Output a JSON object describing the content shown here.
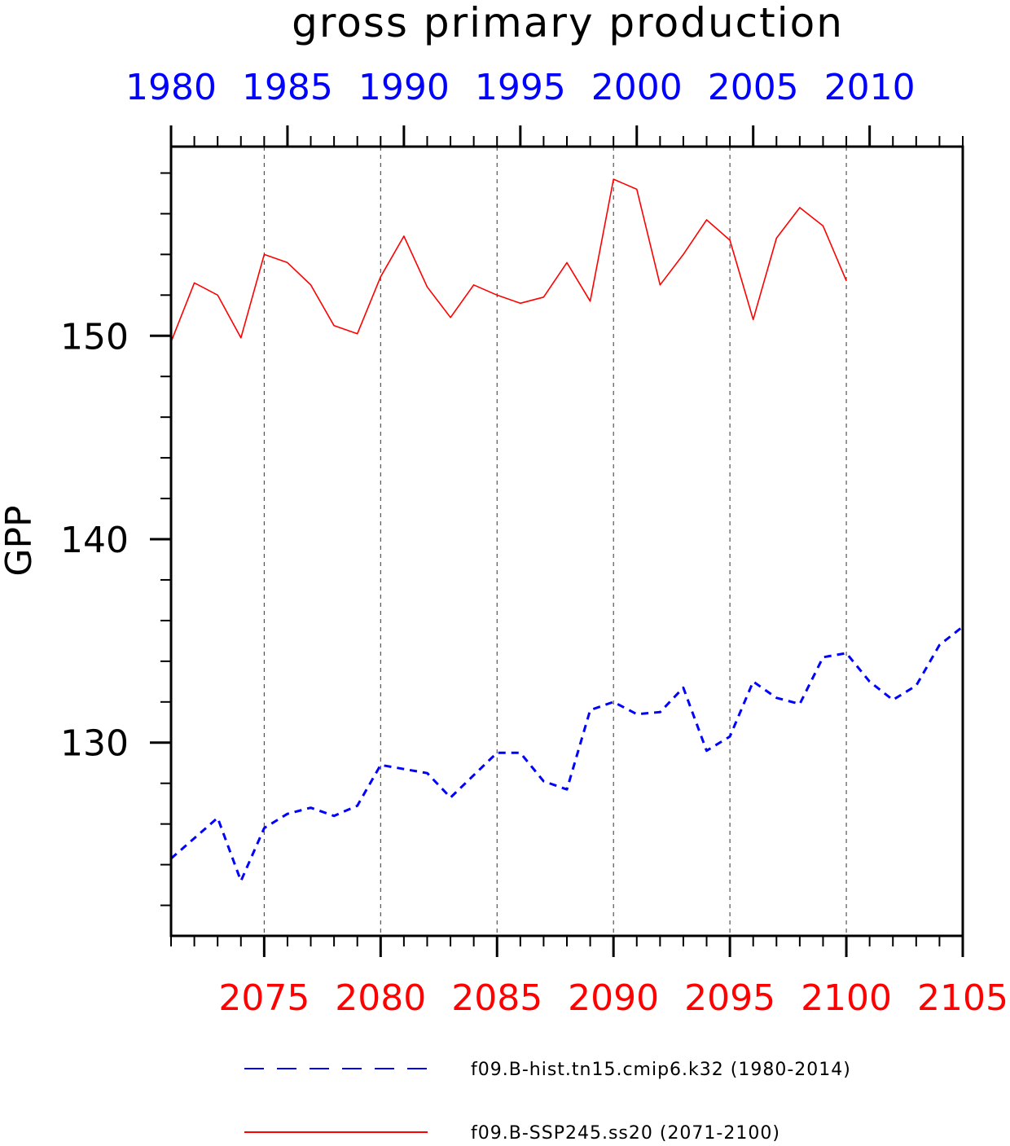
{
  "chart_data": {
    "type": "line",
    "title": "gross primary production",
    "ylabel": "GPP",
    "ylim": [
      120.5,
      159.3
    ],
    "yticks": [
      130,
      140,
      150
    ],
    "ytick_labels": [
      "130",
      "140",
      "150"
    ],
    "grid": "vertical dashed lines at labeled x ticks",
    "legend_position": "bottom",
    "top_axis": {
      "xlim": [
        1980,
        2014
      ],
      "ticks": [
        1980,
        1985,
        1990,
        1995,
        2000,
        2005,
        2010
      ],
      "tick_labels": [
        "1980",
        "1985",
        "1990",
        "1995",
        "2000",
        "2005",
        "2010"
      ],
      "color": "#0000ff"
    },
    "bottom_axis": {
      "xlim": [
        2071,
        2105
      ],
      "ticks": [
        2075,
        2080,
        2085,
        2090,
        2095,
        2100,
        2105
      ],
      "tick_labels": [
        "2075",
        "2080",
        "2085",
        "2090",
        "2095",
        "2100",
        "2105"
      ],
      "color": "#ff0000"
    },
    "series": [
      {
        "name": "f09.B-hist.tn15.cmip6.k32 (1980-2014)",
        "axis": "top",
        "color": "#0000ff",
        "style": "dashed",
        "x": [
          1980,
          1981,
          1982,
          1983,
          1984,
          1985,
          1986,
          1987,
          1988,
          1989,
          1990,
          1991,
          1992,
          1993,
          1994,
          1995,
          1996,
          1997,
          1998,
          1999,
          2000,
          2001,
          2002,
          2003,
          2004,
          2005,
          2006,
          2007,
          2008,
          2009,
          2010,
          2011,
          2012,
          2013,
          2014
        ],
        "values": [
          124.3,
          125.3,
          126.3,
          123.2,
          125.8,
          126.5,
          126.8,
          126.4,
          126.9,
          128.9,
          128.7,
          128.5,
          127.3,
          128.4,
          129.5,
          129.5,
          128.1,
          127.7,
          131.6,
          132.0,
          131.4,
          131.5,
          132.7,
          129.6,
          130.3,
          133.0,
          132.2,
          131.9,
          134.2,
          134.4,
          133.0,
          132.1,
          132.8,
          134.8,
          135.7
        ]
      },
      {
        "name": "f09.B-SSP245.ss20 (2071-2100)",
        "axis": "bottom",
        "color": "#ff0000",
        "style": "solid",
        "x": [
          2071,
          2072,
          2073,
          2074,
          2075,
          2076,
          2077,
          2078,
          2079,
          2080,
          2081,
          2082,
          2083,
          2084,
          2085,
          2086,
          2087,
          2088,
          2089,
          2090,
          2091,
          2092,
          2093,
          2094,
          2095,
          2096,
          2097,
          2098,
          2099,
          2100
        ],
        "values": [
          149.7,
          152.6,
          152.0,
          149.9,
          154.0,
          153.6,
          152.5,
          150.5,
          150.1,
          152.9,
          154.9,
          152.4,
          150.9,
          152.5,
          152.0,
          151.6,
          151.9,
          153.6,
          151.7,
          157.7,
          157.2,
          152.5,
          154.0,
          155.7,
          154.7,
          150.8,
          154.8,
          156.3,
          155.4,
          152.7
        ]
      }
    ]
  }
}
